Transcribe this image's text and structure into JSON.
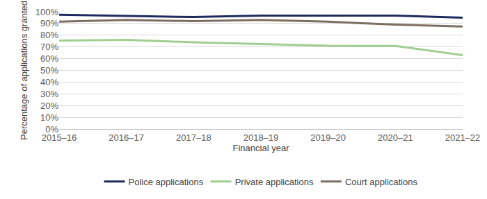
{
  "chart_data": {
    "type": "line",
    "x_label": "Financial year",
    "y_label": "Percentage of applications granted",
    "categories": [
      "2015–16",
      "2016–17",
      "2017–18",
      "2018–19",
      "2019–20",
      "2020–21",
      "2021–22"
    ],
    "series": [
      {
        "name": "Police applications",
        "color": "#1f2a5e",
        "values": [
          97.5,
          96.5,
          95.5,
          96.8,
          96.8,
          96.8,
          95
        ]
      },
      {
        "name": "Private applications",
        "color": "#9fcf8f",
        "values": [
          75.5,
          76,
          74,
          72.5,
          71,
          70.8,
          63
        ]
      },
      {
        "name": "Court applications",
        "color": "#7e6e62",
        "values": [
          91.5,
          93,
          92,
          93,
          91.5,
          89,
          87.5
        ]
      }
    ],
    "ylim": [
      0,
      100
    ],
    "yticks": [
      {
        "value": 0,
        "label": "0%"
      },
      {
        "value": 10,
        "label": "10%"
      },
      {
        "value": 20,
        "label": "20%"
      },
      {
        "value": 30,
        "label": "30%"
      },
      {
        "value": 40,
        "label": "40%"
      },
      {
        "value": 50,
        "label": "50%"
      },
      {
        "value": 60,
        "label": "60%"
      },
      {
        "value": 70,
        "label": "70%"
      },
      {
        "value": 80,
        "label": "80%"
      },
      {
        "value": 90,
        "label": "90%"
      },
      {
        "value": 100,
        "label": "100%"
      }
    ],
    "grid": true,
    "legend": "bottom"
  }
}
